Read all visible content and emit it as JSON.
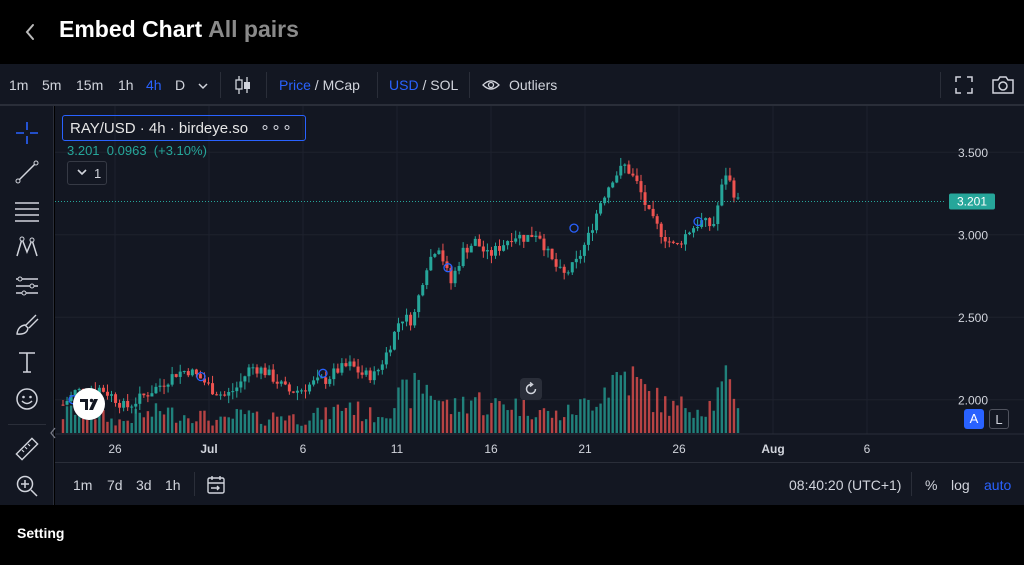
{
  "header": {
    "title": "Embed Chart",
    "subtitle": "All pairs"
  },
  "toolbar": {
    "intervals": [
      "1m",
      "5m",
      "15m",
      "1h",
      "4h",
      "D"
    ],
    "active_interval": "4h",
    "price_label": "Price",
    "mcap_label": "MCap",
    "usd_label": "USD",
    "sol_label": "SOL",
    "outliers_label": "Outliers",
    "slash": "/"
  },
  "legend": {
    "symbol": "RAY/USD · 4h · birdeye.so",
    "dots": "∘∘∘",
    "last": "3.201",
    "change": "0.0963",
    "change_pct": "(+3.10%)",
    "collapse_count": "1"
  },
  "chart_data": {
    "type": "candlestick",
    "pair": "RAY/USD",
    "interval": "4h",
    "source": "birdeye.so",
    "price_axis": {
      "ticks": [
        "3.500",
        "3.000",
        "2.500",
        "2.000"
      ],
      "range": [
        1.78,
        3.78
      ]
    },
    "time_axis": {
      "ticks": [
        "26",
        "Jul",
        "6",
        "11",
        "16",
        "21",
        "26",
        "Aug",
        "6"
      ]
    },
    "last_price": 3.201,
    "last_price_label": "3.201",
    "close_trend": [
      1.97,
      2.05,
      2.06,
      2.07,
      2.02,
      1.95,
      2.0,
      2.05,
      2.1,
      2.16,
      2.18,
      2.13,
      2.06,
      2.02,
      2.08,
      2.2,
      2.18,
      2.12,
      2.05,
      2.06,
      2.1,
      2.12,
      2.18,
      2.21,
      2.15,
      2.15,
      2.3,
      2.5,
      2.48,
      2.8,
      2.95,
      2.7,
      2.9,
      2.96,
      2.87,
      2.93,
      3.0,
      2.98,
      3.02,
      2.85,
      2.75,
      2.82,
      2.98,
      3.2,
      3.35,
      3.42,
      3.3,
      3.1,
      3.0,
      2.92,
      3.02,
      3.08,
      3.05,
      3.38,
      3.2
    ],
    "volume_trend": [
      3,
      4,
      3,
      3,
      2,
      2,
      3,
      3,
      4,
      3,
      3,
      3,
      2,
      2,
      3,
      3,
      2,
      3,
      3,
      2,
      3,
      3,
      4,
      5,
      3,
      3,
      4,
      6,
      7,
      8,
      6,
      4,
      5,
      6,
      4,
      5,
      5,
      4,
      4,
      3,
      3,
      4,
      5,
      7,
      9,
      10,
      8,
      6,
      5,
      4,
      5,
      4,
      5,
      8,
      6
    ],
    "colors": {
      "up": "#26a69a",
      "down": "#ef5350",
      "background": "#131722",
      "grid": "#1e222d",
      "price_line": "#26a69a"
    }
  },
  "axis_buttons": {
    "auto_scale": "A",
    "lock": "L"
  },
  "bottombar": {
    "ranges": [
      "1m",
      "7d",
      "3d",
      "1h"
    ],
    "time": "08:40:20 (UTC+1)",
    "percent": "%",
    "log": "log",
    "auto": "auto"
  },
  "footer": {
    "setting_label": "Setting"
  }
}
